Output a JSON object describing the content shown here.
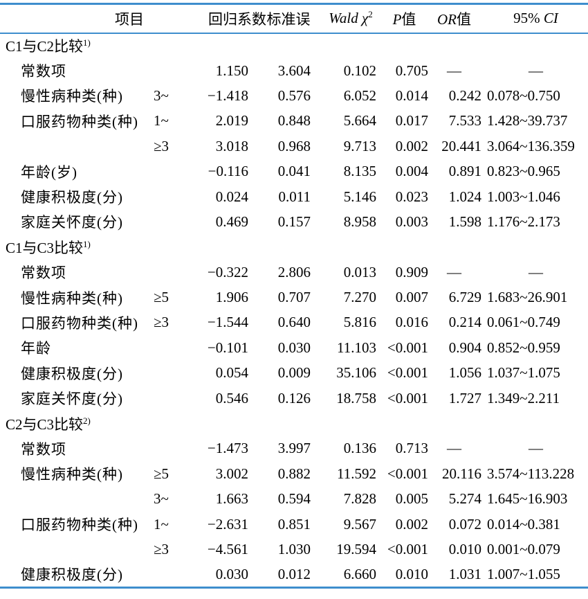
{
  "page": {
    "background": "#ffffff",
    "rule_color": "#3e8ecd",
    "text_color": "#000000"
  },
  "header": {
    "item": "项目",
    "coef": "回归系数",
    "se": "标准误",
    "wald_text": "Wald χ",
    "wald_sup": "2",
    "p_italic": "P",
    "p_rest": "值",
    "or_italic": "OR",
    "or_rest": "值",
    "ci_prefix": "95% ",
    "ci_italic": "CI"
  },
  "sections": [
    {
      "title": "C1与C2比较",
      "title_sup": "1)",
      "rows": [
        {
          "label": "常数项",
          "cat": "",
          "coef": "1.150",
          "se": "3.604",
          "wald": "0.102",
          "p": "0.705",
          "or": "—",
          "ci": "—"
        },
        {
          "label": "慢性病种类(种)",
          "cat": "3~",
          "coef": "−1.418",
          "se": "0.576",
          "wald": "6.052",
          "p": "0.014",
          "or": "0.242",
          "ci": "0.078~0.750"
        },
        {
          "label": "口服药物种类(种)",
          "cat": "1~",
          "coef": "2.019",
          "se": "0.848",
          "wald": "5.664",
          "p": "0.017",
          "or": "7.533",
          "ci": "1.428~39.737"
        },
        {
          "label": "",
          "cat": "≥3",
          "coef": "3.018",
          "se": "0.968",
          "wald": "9.713",
          "p": "0.002",
          "or": "20.441",
          "ci": "3.064~136.359"
        },
        {
          "label": "年龄(岁)",
          "cat": "",
          "coef": "−0.116",
          "se": "0.041",
          "wald": "8.135",
          "p": "0.004",
          "or": "0.891",
          "ci": "0.823~0.965"
        },
        {
          "label": "健康积极度(分)",
          "cat": "",
          "coef": "0.024",
          "se": "0.011",
          "wald": "5.146",
          "p": "0.023",
          "or": "1.024",
          "ci": "1.003~1.046"
        },
        {
          "label": "家庭关怀度(分)",
          "cat": "",
          "coef": "0.469",
          "se": "0.157",
          "wald": "8.958",
          "p": "0.003",
          "or": "1.598",
          "ci": "1.176~2.173"
        }
      ]
    },
    {
      "title": "C1与C3比较",
      "title_sup": "1)",
      "rows": [
        {
          "label": "常数项",
          "cat": "",
          "coef": "−0.322",
          "se": "2.806",
          "wald": "0.013",
          "p": "0.909",
          "or": "—",
          "ci": "—"
        },
        {
          "label": "慢性病种类(种)",
          "cat": "≥5",
          "coef": "1.906",
          "se": "0.707",
          "wald": "7.270",
          "p": "0.007",
          "or": "6.729",
          "ci": "1.683~26.901"
        },
        {
          "label": "口服药物种类(种)",
          "cat": "≥3",
          "coef": "−1.544",
          "se": "0.640",
          "wald": "5.816",
          "p": "0.016",
          "or": "0.214",
          "ci": "0.061~0.749"
        },
        {
          "label": "年龄",
          "cat": "",
          "coef": "−0.101",
          "se": "0.030",
          "wald": "11.103",
          "p": "<0.001",
          "or": "0.904",
          "ci": "0.852~0.959"
        },
        {
          "label": "健康积极度(分)",
          "cat": "",
          "coef": "0.054",
          "se": "0.009",
          "wald": "35.106",
          "p": "<0.001",
          "or": "1.056",
          "ci": "1.037~1.075"
        },
        {
          "label": "家庭关怀度(分)",
          "cat": "",
          "coef": "0.546",
          "se": "0.126",
          "wald": "18.758",
          "p": "<0.001",
          "or": "1.727",
          "ci": "1.349~2.211"
        }
      ]
    },
    {
      "title": "C2与C3比较",
      "title_sup": "2)",
      "rows": [
        {
          "label": "常数项",
          "cat": "",
          "coef": "−1.473",
          "se": "3.997",
          "wald": "0.136",
          "p": "0.713",
          "or": "—",
          "ci": "—"
        },
        {
          "label": "慢性病种类(种)",
          "cat": "≥5",
          "coef": "3.002",
          "se": "0.882",
          "wald": "11.592",
          "p": "<0.001",
          "or": "20.116",
          "ci": "3.574~113.228"
        },
        {
          "label": "",
          "cat": "3~",
          "coef": "1.663",
          "se": "0.594",
          "wald": "7.828",
          "p": "0.005",
          "or": "5.274",
          "ci": "1.645~16.903"
        },
        {
          "label": "口服药物种类(种)",
          "cat": "1~",
          "coef": "−2.631",
          "se": "0.851",
          "wald": "9.567",
          "p": "0.002",
          "or": "0.072",
          "ci": "0.014~0.381"
        },
        {
          "label": "",
          "cat": "≥3",
          "coef": "−4.561",
          "se": "1.030",
          "wald": "19.594",
          "p": "<0.001",
          "or": "0.010",
          "ci": "0.001~0.079"
        },
        {
          "label": "健康积极度(分)",
          "cat": "",
          "coef": "0.030",
          "se": "0.012",
          "wald": "6.660",
          "p": "0.010",
          "or": "1.031",
          "ci": "1.007~1.055"
        }
      ]
    }
  ]
}
